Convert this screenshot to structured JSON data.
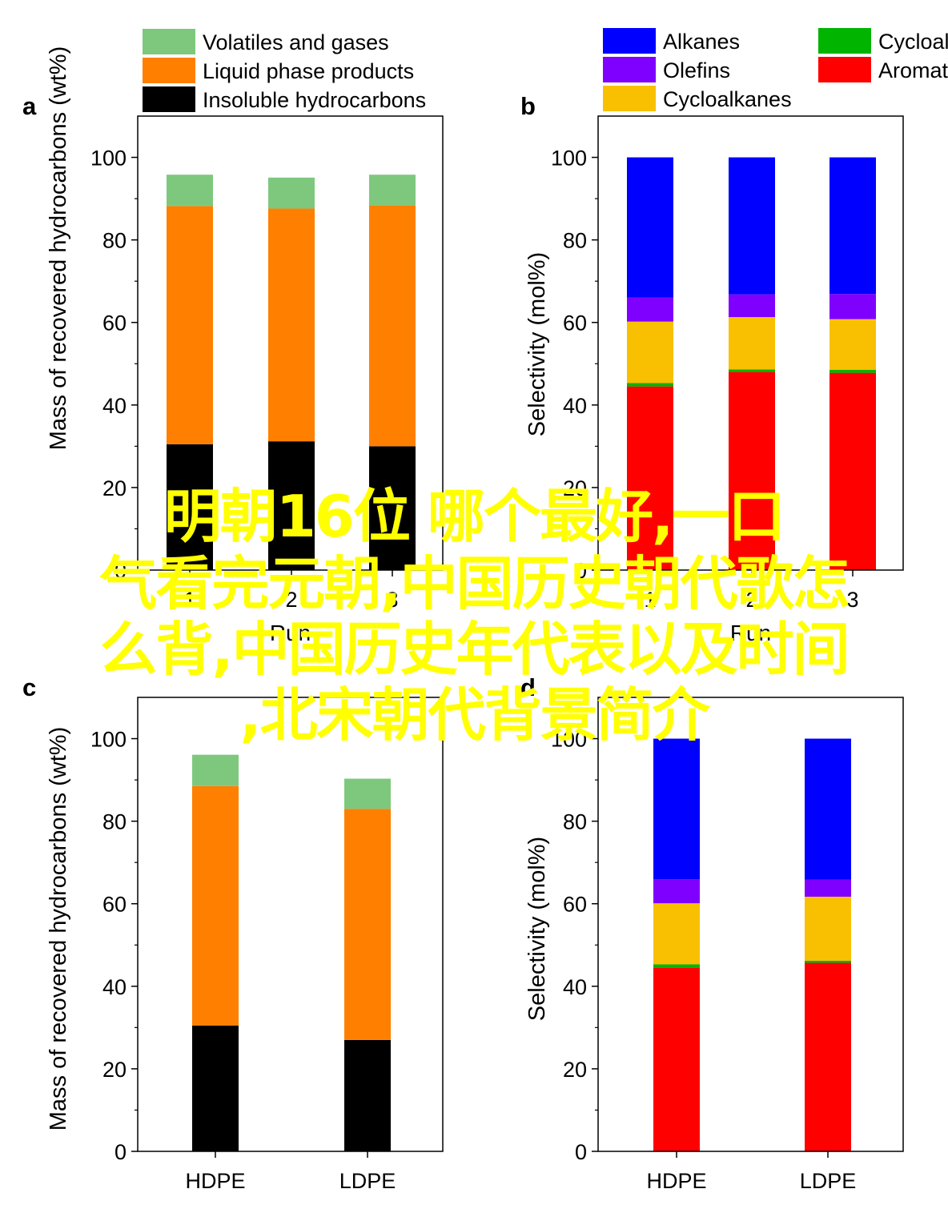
{
  "overlay_text": {
    "line1": "明朝16位 哪个最好,一口",
    "line2": "气看完元朝,中国历史朝代歌怎",
    "line3": "么背,中国历史年代表以及时间",
    "line4": ",北宋朝代背景简介",
    "color": "#ffff00"
  },
  "chart_data": [
    {
      "panel": "a",
      "type": "bar",
      "stacked": true,
      "categories": [
        "1",
        "2",
        "3"
      ],
      "xlabel": "Run",
      "ylabel": "Mass of recovered hydrocarbons (wt%)",
      "ylim": [
        0,
        110
      ],
      "yticks": [
        0,
        20,
        40,
        60,
        80,
        100
      ],
      "legend_position": "top",
      "series": [
        {
          "name": "Insoluble hydrocarbons",
          "color": "#000000",
          "values": [
            30.5,
            31.2,
            30.0
          ]
        },
        {
          "name": "Liquid phase products",
          "color": "#ff7f00",
          "values": [
            57.7,
            56.4,
            58.4
          ]
        },
        {
          "name": "Volatiles and gases",
          "color": "#7ec87e",
          "values": [
            7.6,
            7.5,
            7.4
          ]
        }
      ]
    },
    {
      "panel": "b",
      "type": "bar",
      "stacked": true,
      "categories": [
        "1",
        "2",
        "3"
      ],
      "xlabel": "Run",
      "ylabel": "Selectivity (mol%)",
      "ylim": [
        0,
        110
      ],
      "yticks": [
        0,
        20,
        40,
        60,
        80,
        100
      ],
      "legend_position": "top",
      "series": [
        {
          "name": "Aromatics",
          "color": "#ff0000",
          "values": [
            44.5,
            48.0,
            47.8
          ]
        },
        {
          "name": "Cycloalkenes",
          "color": "#00b400",
          "values": [
            0.8,
            0.6,
            0.7
          ]
        },
        {
          "name": "Cycloalkanes",
          "color": "#f8c000",
          "values": [
            14.9,
            12.7,
            12.3
          ]
        },
        {
          "name": "Olefins",
          "color": "#8000ff",
          "values": [
            5.8,
            5.5,
            6.1
          ]
        },
        {
          "name": "Alkanes",
          "color": "#0000ff",
          "values": [
            34.0,
            33.2,
            33.1
          ]
        }
      ]
    },
    {
      "panel": "c",
      "type": "bar",
      "stacked": true,
      "categories": [
        "HDPE",
        "LDPE"
      ],
      "xlabel": "",
      "ylabel": "Mass of recovered hydrocarbons (wt%)",
      "ylim": [
        0,
        110
      ],
      "yticks": [
        0,
        20,
        40,
        60,
        80,
        100
      ],
      "series": [
        {
          "name": "Insoluble hydrocarbons",
          "color": "#000000",
          "values": [
            30.5,
            27.0
          ]
        },
        {
          "name": "Liquid phase products",
          "color": "#ff7f00",
          "values": [
            58.0,
            56.0
          ]
        },
        {
          "name": "Volatiles and gases",
          "color": "#7ec87e",
          "values": [
            7.6,
            7.3
          ]
        }
      ]
    },
    {
      "panel": "d",
      "type": "bar",
      "stacked": true,
      "categories": [
        "HDPE",
        "LDPE"
      ],
      "xlabel": "",
      "ylabel": "Selectivity (mol%)",
      "ylim": [
        0,
        110
      ],
      "yticks": [
        0,
        20,
        40,
        60,
        80,
        100
      ],
      "series": [
        {
          "name": "Aromatics",
          "color": "#ff0000",
          "values": [
            44.5,
            45.7
          ]
        },
        {
          "name": "Cycloalkenes",
          "color": "#00b400",
          "values": [
            0.8,
            0.5
          ]
        },
        {
          "name": "Cycloalkanes",
          "color": "#f8c000",
          "values": [
            14.8,
            15.5
          ]
        },
        {
          "name": "Olefins",
          "color": "#8000ff",
          "values": [
            5.8,
            4.1
          ]
        },
        {
          "name": "Alkanes",
          "color": "#0000ff",
          "values": [
            34.1,
            34.2
          ]
        }
      ]
    }
  ]
}
